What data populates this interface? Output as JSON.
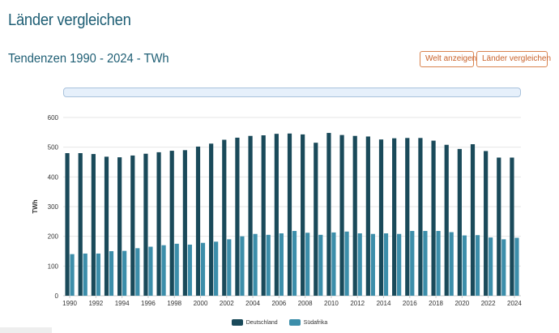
{
  "header": {
    "title": "Länder vergleichen",
    "subtitle": "Tendenzen 1990 - 2024 - TWh"
  },
  "actions": {
    "world_label": "Welt anzeigen",
    "compare_label": "Länder vergleichen"
  },
  "colors": {
    "title": "#1e5e74",
    "button_border": "#d9834f",
    "button_text": "#c9622a",
    "series_1": "#1a4a5a",
    "series_2": "#3c8eaa"
  },
  "chart_data": {
    "type": "bar",
    "x": [
      1990,
      1991,
      1992,
      1993,
      1994,
      1995,
      1996,
      1997,
      1998,
      1999,
      2000,
      2001,
      2002,
      2003,
      2004,
      2005,
      2006,
      2007,
      2008,
      2009,
      2010,
      2011,
      2012,
      2013,
      2014,
      2015,
      2016,
      2017,
      2018,
      2019,
      2020,
      2021,
      2022,
      2023,
      2024
    ],
    "x_tick_labels": [
      "1990",
      "1992",
      "1994",
      "1996",
      "1998",
      "2000",
      "2002",
      "2004",
      "2006",
      "2008",
      "2010",
      "2012",
      "2014",
      "2016",
      "2018",
      "2020",
      "2022",
      "2024"
    ],
    "ylabel": "TWh",
    "ylim": [
      0,
      600
    ],
    "y_ticks": [
      0,
      100,
      200,
      300,
      400,
      500,
      600
    ],
    "grid": true,
    "legend_position": "bottom",
    "series": [
      {
        "name": "Deutschland",
        "color": "#1a4a5a",
        "values": [
          480,
          480,
          477,
          468,
          466,
          472,
          478,
          483,
          488,
          490,
          502,
          512,
          525,
          532,
          538,
          540,
          545,
          546,
          543,
          515,
          548,
          541,
          538,
          536,
          526,
          530,
          531,
          531,
          522,
          508,
          494,
          510,
          487,
          465,
          465
        ]
      },
      {
        "name": "Südafrika",
        "color": "#3c8eaa",
        "values": [
          140,
          142,
          142,
          150,
          151,
          160,
          165,
          170,
          175,
          172,
          178,
          182,
          190,
          200,
          208,
          205,
          210,
          218,
          212,
          205,
          213,
          216,
          210,
          208,
          210,
          208,
          218,
          218,
          218,
          214,
          203,
          204,
          196,
          190,
          195
        ]
      }
    ]
  }
}
